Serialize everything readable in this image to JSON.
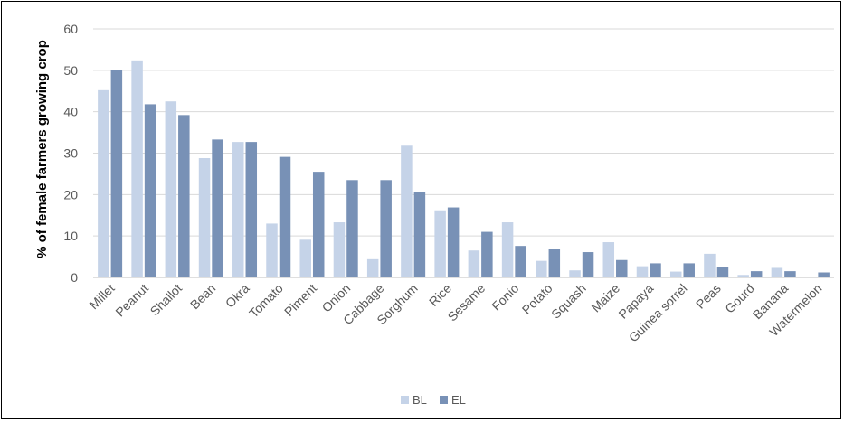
{
  "chart_data": {
    "type": "bar",
    "title": "",
    "xlabel": "",
    "ylabel": "% of female farmers growing crop",
    "ylim": [
      0,
      60
    ],
    "yticks": [
      0,
      10,
      20,
      30,
      40,
      50,
      60
    ],
    "grid": "horizontal",
    "legend_position": "bottom",
    "categories": [
      "Millet",
      "Peanut",
      "Shallot",
      "Bean",
      "Okra",
      "Tomato",
      "Piment",
      "Onion",
      "Cabbage",
      "Sorghum",
      "Rice",
      "Sesame",
      "Fonio",
      "Potato",
      "Squash",
      "Maize",
      "Papaya",
      "Guinea sorrel",
      "Peas",
      "Gourd",
      "Banana",
      "Watermelon"
    ],
    "series": [
      {
        "name": "BL",
        "color": "#c5d3e8",
        "values": [
          45.2,
          52.4,
          42.5,
          28.8,
          32.7,
          13.0,
          9.1,
          13.3,
          4.4,
          31.8,
          16.2,
          6.5,
          13.3,
          4.0,
          1.7,
          8.5,
          2.7,
          1.4,
          5.7,
          0.6,
          2.3,
          0.0
        ]
      },
      {
        "name": "EL",
        "color": "#7891b6",
        "values": [
          50.0,
          41.8,
          39.2,
          33.3,
          32.7,
          29.1,
          25.5,
          23.5,
          23.5,
          20.6,
          16.9,
          11.0,
          7.6,
          6.9,
          6.1,
          4.2,
          3.4,
          3.4,
          2.6,
          1.5,
          1.5,
          1.2
        ]
      }
    ]
  }
}
